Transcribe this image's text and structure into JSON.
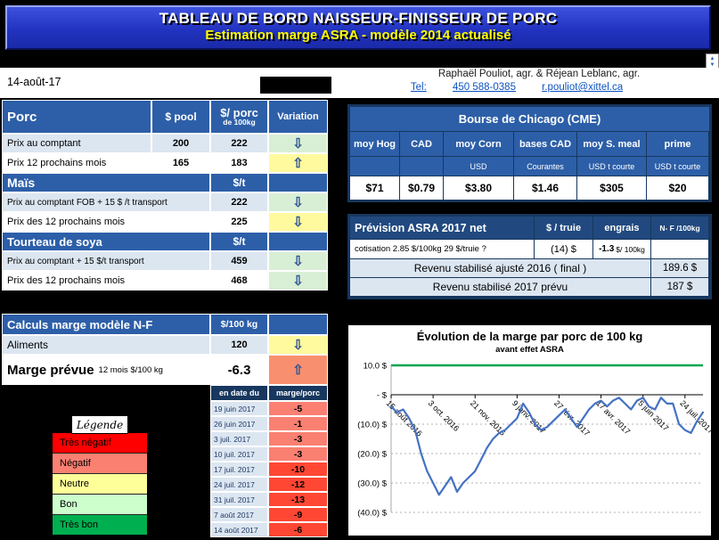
{
  "colors": {
    "banner_blue": "#2133C0",
    "header_blue": "#2D5FA8",
    "navy": "#17375E",
    "light_blue": "#DCE6F1",
    "tres_negatif": "#FF0000",
    "negatif": "#FA8072",
    "neutre": "#FFFF99",
    "bon": "#CCFFCC",
    "tres_bon": "#00B050",
    "series_blue": "#4472C4",
    "reference_green": "#00A651"
  },
  "banner": {
    "line1": "TABLEAU DE BORD NAISSEUR-FINISSEUR DE PORC",
    "line2": "Estimation marge ASRA - modèle 2014 actualisé"
  },
  "topbar": {
    "date": "14-août-17",
    "authors": "Raphaël Pouliot, agr.   &   Réjean Leblanc, agr.",
    "tel_label": "Tel:",
    "tel_number": "450 588-0385",
    "email": "r.pouliot@xittel.ca"
  },
  "porc_table": {
    "header": {
      "title": "Porc",
      "col_pool": "$ pool",
      "col_price": "$/ porc",
      "col_price_sub": "de 100kg",
      "col_var": "Variation"
    },
    "rows": [
      {
        "label": "Prix au comptant",
        "pool": "200",
        "price": "222",
        "arrow": "⇩",
        "tone": "green"
      },
      {
        "label": "Prix 12 prochains mois",
        "pool": "165",
        "price": "183",
        "arrow": "⇧",
        "tone": "yellow"
      }
    ],
    "mais": {
      "title": "Maïs",
      "unit": "$/t",
      "rows": [
        {
          "label": "Prix au comptant  FOB + 15 $ /t transport",
          "price": "222",
          "arrow": "⇩",
          "tone": "green"
        },
        {
          "label": "Prix des 12 prochains mois",
          "price": "225",
          "arrow": "⇩",
          "tone": "yellow"
        }
      ]
    },
    "soya": {
      "title": "Tourteau de soya",
      "unit": "$/t",
      "rows": [
        {
          "label": "Prix au comptant  + 15 $/t  transport",
          "price": "459",
          "arrow": "⇩",
          "tone": "green"
        },
        {
          "label": "Prix des 12 prochains mois",
          "price": "468",
          "arrow": "⇩",
          "tone": "green"
        }
      ]
    }
  },
  "calc_table": {
    "title": "Calculs marge  modèle N-F",
    "unit": "$/100 kg",
    "aliments": {
      "label": "Aliments",
      "value": "120",
      "arrow": "⇩",
      "tone": "yellow"
    },
    "marge": {
      "label": "Marge prévue",
      "label_small": "12 mois $/100 kg",
      "value": "-6.3",
      "arrow": "⇧",
      "tone": "orange"
    }
  },
  "history": {
    "col_date": "en date du",
    "col_value": "marge/porc",
    "rows": [
      {
        "date": "19 juin 2017",
        "value": "-5",
        "level": "negatif"
      },
      {
        "date": "26 juin 2017",
        "value": "-1",
        "level": "negatif"
      },
      {
        "date": "3 juil. 2017",
        "value": "-3",
        "level": "negatif"
      },
      {
        "date": "10 juil. 2017",
        "value": "-3",
        "level": "negatif"
      },
      {
        "date": "17 juil. 2017",
        "value": "-10",
        "level": "tres-negatif"
      },
      {
        "date": "24 juil. 2017",
        "value": "-12",
        "level": "tres-negatif"
      },
      {
        "date": "31 juil. 2017",
        "value": "-13",
        "level": "tres-negatif"
      },
      {
        "date": "7 août 2017",
        "value": "-9",
        "level": "tres-negatif"
      },
      {
        "date": "14 août 2017",
        "value": "-6",
        "level": "tres-negatif"
      }
    ]
  },
  "legend": {
    "title": "Légende",
    "items": [
      {
        "label": "Très négatif",
        "level": "tres-negatif"
      },
      {
        "label": "Négatif",
        "level": "negatif"
      },
      {
        "label": "Neutre",
        "level": "neutre"
      },
      {
        "label": "Bon",
        "level": "bon"
      },
      {
        "label": "Très bon",
        "level": "tres-bon"
      }
    ]
  },
  "cme": {
    "title": "Bourse de Chicago (CME)",
    "columns": [
      {
        "name": "moy Hog",
        "sub": "",
        "value": "$71"
      },
      {
        "name": "CAD",
        "sub": "",
        "value": "$0.79"
      },
      {
        "name": "moy Corn",
        "sub": "USD",
        "value": "$3.80"
      },
      {
        "name": "bases CAD",
        "sub": "Courantes",
        "value": "$1.46"
      },
      {
        "name": "moy S. meal",
        "sub": "USD t courte",
        "value": "$305"
      },
      {
        "name": "prime",
        "sub": "USD t courte",
        "value": "$20"
      }
    ]
  },
  "asra": {
    "title": "Prévision ASRA 2017 net",
    "col_truie": "$ / truie",
    "col_engrais": "engrais",
    "col_nf": "N- F /100kg",
    "cotisation": "cotisation 2.85 $/100kg  29 $/truie ?",
    "truie_value": "(14) $",
    "engrais_value": "-1.3",
    "engrais_unit": "$/ 100kg",
    "rev2016_label": "Revenu stabilisé ajusté 2016 ( final )",
    "rev2016_value": "189.6 $",
    "rev2017_label": "Revenu stabilisé 2017 prévu",
    "rev2017_value": "187 $"
  },
  "chart_data": {
    "type": "line",
    "title": "Évolution de la marge par porc de 100 kg",
    "subtitle": "avant effet ASRA",
    "ylim": [
      -40,
      10
    ],
    "grid": true,
    "yticks": [
      {
        "v": 10,
        "label": "10.0 $"
      },
      {
        "v": 0,
        "label": "-   $"
      },
      {
        "v": -10,
        "label": "(10.0) $"
      },
      {
        "v": -20,
        "label": "(20.0) $"
      },
      {
        "v": -30,
        "label": "(30.0) $"
      },
      {
        "v": -40,
        "label": "(40.0) $"
      }
    ],
    "xticks": [
      {
        "week": 0,
        "label": "15 août 2016"
      },
      {
        "week": 7,
        "label": "3 oct. 2016"
      },
      {
        "week": 14,
        "label": "21 nov. 2016"
      },
      {
        "week": 21,
        "label": "9 janv. 2017"
      },
      {
        "week": 28,
        "label": "27 févr. 2017"
      },
      {
        "week": 35,
        "label": "17 avr. 2017"
      },
      {
        "week": 42,
        "label": "5 juin 2017"
      },
      {
        "week": 49,
        "label": "24 juil. 2017"
      }
    ],
    "reference_line": {
      "value": 10,
      "color": "#00A651"
    },
    "series": [
      {
        "name": "marge par porc",
        "color": "#4472C4",
        "values": [
          -4,
          -6,
          -5,
          -8,
          -12,
          -20,
          -26,
          -30,
          -34,
          -31,
          -28,
          -33,
          -30,
          -28,
          -26,
          -22,
          -18,
          -15,
          -13,
          -12,
          -10,
          -8,
          -3,
          -6,
          -10,
          -12,
          -11,
          -9,
          -7,
          -5,
          -8,
          -11,
          -8,
          -5,
          -3,
          -2,
          -4,
          -2,
          -1,
          -3,
          -5,
          -2,
          -1,
          -4,
          -5,
          -1,
          -3,
          -3,
          -10,
          -12,
          -13,
          -9,
          -6
        ]
      }
    ]
  }
}
